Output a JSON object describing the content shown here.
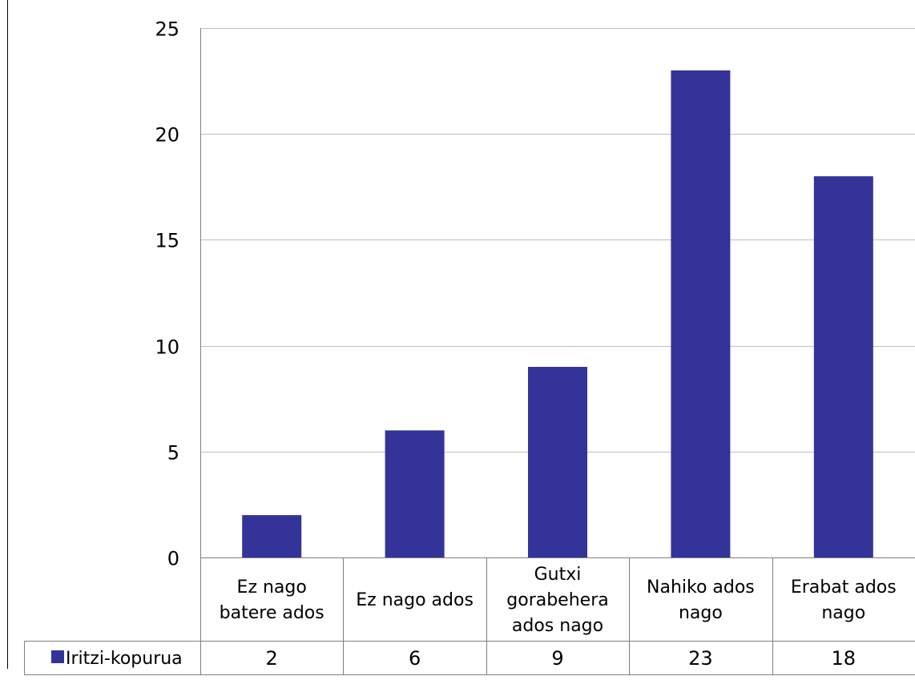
{
  "chart_data": {
    "type": "bar",
    "categories": [
      [
        "Ez nago",
        "batere ados"
      ],
      [
        "Ez nago ados"
      ],
      [
        "Gutxi",
        "gorabehera",
        "ados nago"
      ],
      [
        "Nahiko ados",
        "nago"
      ],
      [
        "Erabat ados",
        "nago"
      ]
    ],
    "series": [
      {
        "name": "Iritzi-kopurua",
        "values": [
          2,
          6,
          9,
          23,
          18
        ],
        "color": "#333399"
      }
    ],
    "ylim": [
      0,
      25
    ],
    "yticks": [
      0,
      5,
      10,
      15,
      20,
      25
    ],
    "grid": true,
    "legend": "data-table-left",
    "data_table": true
  }
}
